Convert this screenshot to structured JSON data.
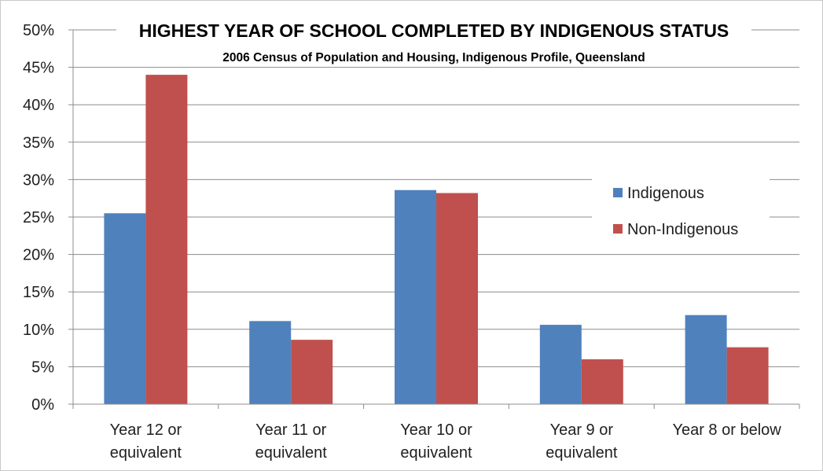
{
  "chart_data": {
    "type": "bar",
    "title": "HIGHEST YEAR OF SCHOOL COMPLETED BY INDIGENOUS STATUS",
    "subtitle": "2006 Census of Population and Housing, Indigenous Profile, Queensland",
    "categories": [
      [
        "Year 12 or",
        "equivalent"
      ],
      [
        "Year 11 or",
        "equivalent"
      ],
      [
        "Year 10 or",
        "equivalent"
      ],
      [
        "Year 9 or",
        "equivalent"
      ],
      [
        "Year 8 or below"
      ]
    ],
    "series": [
      {
        "name": "Indigenous",
        "color": "#4f81bd",
        "values": [
          25.5,
          11.1,
          28.6,
          10.6,
          11.9
        ]
      },
      {
        "name": "Non-Indigenous",
        "color": "#c0504d",
        "values": [
          44.0,
          8.6,
          28.2,
          6.0,
          7.6
        ]
      }
    ],
    "ylim": [
      0,
      50
    ],
    "yticks": [
      "0%",
      "5%",
      "10%",
      "15%",
      "20%",
      "25%",
      "30%",
      "35%",
      "40%",
      "45%",
      "50%"
    ],
    "ytick_values": [
      0,
      5,
      10,
      15,
      20,
      25,
      30,
      35,
      40,
      45,
      50
    ],
    "grid": true,
    "legend_position": "right"
  }
}
